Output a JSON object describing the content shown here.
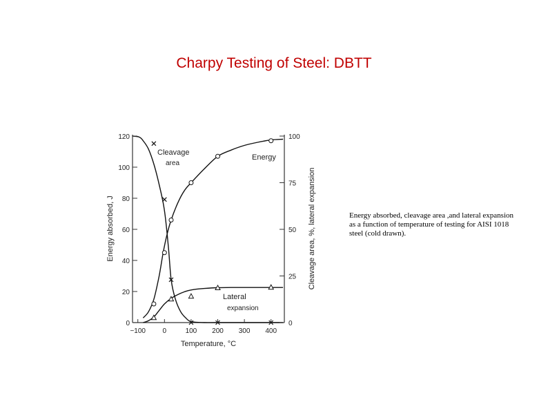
{
  "slide": {
    "title": "Charpy Testing of Steel: DBTT",
    "caption": "Energy absorbed, cleavage area ,and  lateral expansion as a function of temperature of testing  for AISI 1018 steel (cold drawn)."
  },
  "chart_data": {
    "type": "line",
    "xlabel": "Temperature, °C",
    "ylabel_left": "Energy absorbed, J",
    "ylabel_right": "Cleavage area, %,  lateral expansion",
    "xlim": [
      -120,
      450
    ],
    "ylim_left": [
      0,
      120
    ],
    "ylim_right": [
      0,
      100
    ],
    "xticks": [
      -100,
      0,
      100,
      200,
      300,
      400
    ],
    "xtick_labels": [
      "−100",
      "0",
      "100",
      "200",
      "300",
      "400"
    ],
    "yticks_left": [
      0,
      20,
      40,
      60,
      80,
      100,
      120
    ],
    "yticks_right": [
      0,
      25,
      50,
      75,
      100
    ],
    "series": [
      {
        "name": "Energy",
        "axis": "left",
        "marker": "circle",
        "curve": [
          [
            -80,
            3
          ],
          [
            -60,
            7
          ],
          [
            -40,
            15
          ],
          [
            -20,
            30
          ],
          [
            -5,
            45
          ],
          [
            10,
            57
          ],
          [
            25,
            66
          ],
          [
            50,
            77
          ],
          [
            75,
            85
          ],
          [
            100,
            90
          ],
          [
            150,
            99
          ],
          [
            200,
            107
          ],
          [
            250,
            111
          ],
          [
            300,
            114
          ],
          [
            350,
            116
          ],
          [
            400,
            117.5
          ],
          [
            445,
            118
          ]
        ],
        "points": [
          [
            -40,
            12
          ],
          [
            0,
            45
          ],
          [
            25,
            66
          ],
          [
            100,
            90
          ],
          [
            200,
            107
          ],
          [
            400,
            117
          ]
        ]
      },
      {
        "name": "Cleavage area",
        "axis": "right",
        "marker": "x",
        "curve": [
          [
            -120,
            100
          ],
          [
            -95,
            99.5
          ],
          [
            -80,
            97.5
          ],
          [
            -60,
            93
          ],
          [
            -40,
            85
          ],
          [
            -20,
            74
          ],
          [
            0,
            60
          ],
          [
            15,
            40
          ],
          [
            25,
            23
          ],
          [
            40,
            13
          ],
          [
            60,
            6
          ],
          [
            80,
            2.5
          ],
          [
            100,
            0.5
          ],
          [
            150,
            0
          ],
          [
            200,
            0
          ],
          [
            400,
            0
          ],
          [
            445,
            0
          ]
        ],
        "points": [
          [
            -40,
            96
          ],
          [
            0,
            66
          ],
          [
            25,
            23
          ],
          [
            100,
            0
          ],
          [
            200,
            0
          ],
          [
            400,
            0
          ]
        ]
      },
      {
        "name": "Lateral expansion",
        "axis": "right",
        "marker": "triangle",
        "curve": [
          [
            -80,
            0
          ],
          [
            -60,
            1
          ],
          [
            -40,
            3
          ],
          [
            -20,
            6.5
          ],
          [
            0,
            10
          ],
          [
            25,
            13
          ],
          [
            50,
            15
          ],
          [
            75,
            16.5
          ],
          [
            100,
            17.5
          ],
          [
            150,
            18.3
          ],
          [
            200,
            18.7
          ],
          [
            250,
            18.8
          ],
          [
            300,
            18.8
          ],
          [
            350,
            18.8
          ],
          [
            400,
            18.8
          ],
          [
            445,
            18.8
          ]
        ],
        "points": [
          [
            -40,
            2.5
          ],
          [
            25,
            12.5
          ],
          [
            100,
            14
          ],
          [
            200,
            18.5
          ],
          [
            400,
            18.8
          ]
        ]
      }
    ],
    "annotations": {
      "cleavage_label_1": "Cleavage",
      "cleavage_label_2": "area",
      "energy_label": "Energy",
      "lateral_label_1": "Lateral",
      "lateral_label_2": "expansion"
    }
  }
}
